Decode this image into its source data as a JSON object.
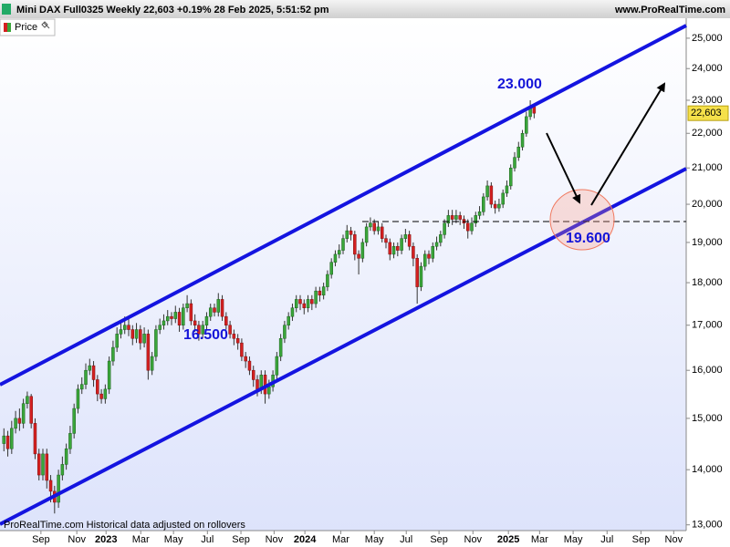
{
  "header": {
    "title": "Mini DAX Full0325 Weekly 22,603 +0.19% 28 Feb 2025, 5:51:52 pm",
    "site": "www.ProRealTime.com"
  },
  "legend": {
    "label": "Price"
  },
  "footer": "ProRealTime.com  Historical data adjusted on rollovers",
  "chart_data": {
    "type": "candlestick",
    "log_scale": true,
    "up_color": "#3aa63a",
    "down_color": "#d42020",
    "xlim": [
      -1,
      175
    ],
    "ylim": [
      12900,
      25680
    ],
    "xticks": [
      {
        "value": 9.5,
        "label": "Sep"
      },
      {
        "value": 18.7,
        "label": "Nov"
      },
      {
        "value": 26.2,
        "label": "2023"
      },
      {
        "value": 35.1,
        "label": "Mar"
      },
      {
        "value": 43.5,
        "label": "May"
      },
      {
        "value": 52.2,
        "label": "Jul"
      },
      {
        "value": 60.8,
        "label": "Sep"
      },
      {
        "value": 69.3,
        "label": "Nov"
      },
      {
        "value": 77.2,
        "label": "2024"
      },
      {
        "value": 86.4,
        "label": "Mar"
      },
      {
        "value": 95,
        "label": "May"
      },
      {
        "value": 103.2,
        "label": "Jul"
      },
      {
        "value": 111.6,
        "label": "Sep"
      },
      {
        "value": 120.3,
        "label": "Nov"
      },
      {
        "value": 129.4,
        "label": "2025"
      },
      {
        "value": 137.4,
        "label": "Mar"
      },
      {
        "value": 146,
        "label": "May"
      },
      {
        "value": 154.7,
        "label": "Jul"
      },
      {
        "value": 163.4,
        "label": "Sep"
      },
      {
        "value": 171.8,
        "label": "Nov"
      }
    ],
    "yticks": [
      {
        "value": 13000,
        "label": "13,000"
      },
      {
        "value": 14000,
        "label": "14,000"
      },
      {
        "value": 15000,
        "label": "15,000"
      },
      {
        "value": 16000,
        "label": "16,000"
      },
      {
        "value": 17000,
        "label": "17,000"
      },
      {
        "value": 18000,
        "label": "18,000"
      },
      {
        "value": 19000,
        "label": "19,000"
      },
      {
        "value": 20000,
        "label": "20,000"
      },
      {
        "value": 21000,
        "label": "21,000"
      },
      {
        "value": 22000,
        "label": "22,000"
      },
      {
        "value": 23000,
        "label": "23,000"
      },
      {
        "value": 24000,
        "label": "24,000"
      },
      {
        "value": 25000,
        "label": "25,000"
      }
    ],
    "last_price": {
      "value": 22603,
      "label": "22,603"
    },
    "annotations": [
      "23.000",
      "16.500",
      "19.600"
    ],
    "open": [
      14500,
      14650,
      14400,
      14800,
      15000,
      14900,
      15300,
      15450,
      14900,
      14300,
      13900,
      14300,
      13800,
      13600,
      13400,
      13900,
      14100,
      14400,
      14700,
      15200,
      15600,
      15700,
      16000,
      16100,
      15800,
      15500,
      15400,
      15600,
      16200,
      16500,
      16800,
      16900,
      17000,
      16900,
      16700,
      16900,
      16600,
      16800,
      16000,
      16300,
      16900,
      17000,
      17100,
      17200,
      17150,
      17300,
      17000,
      17400,
      17500,
      17100,
      17000,
      16800,
      17000,
      17200,
      17400,
      17300,
      17600,
      17200,
      17000,
      16800,
      16700,
      16600,
      16300,
      16200,
      16000,
      15800,
      15600,
      15900,
      15500,
      15650,
      15900,
      16300,
      16700,
      17000,
      17200,
      17400,
      17600,
      17500,
      17400,
      17600,
      17500,
      17800,
      17700,
      17900,
      18200,
      18500,
      18700,
      18800,
      19100,
      19300,
      19200,
      18700,
      18600,
      19000,
      19400,
      19500,
      19300,
      19400,
      19100,
      19000,
      18700,
      18900,
      18800,
      19100,
      19200,
      18900,
      18600,
      17900,
      18400,
      18700,
      18600,
      18900,
      19000,
      19200,
      19500,
      19700,
      19600,
      19700,
      19600,
      19500,
      19300,
      19500,
      19700,
      19800,
      20200,
      20500,
      20000,
      19900,
      20000,
      20300,
      20500,
      21000,
      21300,
      21600,
      22000,
      22500,
      22800
    ],
    "high": [
      14800,
      14750,
      14950,
      15150,
      15200,
      15400,
      15550,
      15500,
      15000,
      14400,
      14400,
      14400,
      13900,
      13700,
      14000,
      14250,
      14500,
      14850,
      15300,
      15700,
      15850,
      16150,
      16250,
      16200,
      15900,
      15600,
      15700,
      16300,
      16650,
      16950,
      17100,
      17200,
      17150,
      17000,
      17050,
      17000,
      16950,
      16900,
      16400,
      17000,
      17150,
      17250,
      17350,
      17300,
      17450,
      17400,
      17500,
      17700,
      17600,
      17250,
      17100,
      17100,
      17300,
      17500,
      17500,
      17750,
      17700,
      17300,
      17100,
      16900,
      16800,
      16700,
      16400,
      16300,
      16100,
      15900,
      16000,
      16000,
      15800,
      16000,
      16400,
      16800,
      17100,
      17300,
      17500,
      17700,
      17700,
      17600,
      17700,
      17700,
      17900,
      17900,
      18000,
      18300,
      18600,
      18800,
      18950,
      19200,
      19450,
      19400,
      19300,
      18800,
      19100,
      19500,
      19650,
      19600,
      19550,
      19500,
      19200,
      19100,
      19000,
      19000,
      19200,
      19350,
      19300,
      19000,
      18700,
      18500,
      18800,
      18800,
      19000,
      19150,
      19300,
      19600,
      19850,
      19850,
      19850,
      19800,
      19700,
      19600,
      19650,
      19800,
      19950,
      20300,
      20650,
      20600,
      20100,
      20150,
      20400,
      20650,
      21100,
      21450,
      21750,
      22100,
      22650,
      23000,
      22900
    ],
    "low": [
      14350,
      14250,
      14300,
      14700,
      14750,
      14800,
      15200,
      14800,
      14200,
      13800,
      13800,
      13650,
      13400,
      13200,
      13300,
      13800,
      14000,
      14300,
      14600,
      15100,
      15500,
      15600,
      15900,
      15650,
      15350,
      15300,
      15300,
      15500,
      16100,
      16400,
      16700,
      16800,
      16750,
      16550,
      16600,
      16450,
      16500,
      15800,
      15900,
      16200,
      16800,
      16900,
      17000,
      17000,
      17050,
      16850,
      16900,
      17300,
      17000,
      16850,
      16650,
      16700,
      16900,
      17100,
      17200,
      17200,
      17100,
      16900,
      16700,
      16550,
      16450,
      16200,
      16050,
      15900,
      15650,
      15450,
      15500,
      15300,
      15400,
      15550,
      15800,
      16200,
      16600,
      16900,
      17100,
      17300,
      17350,
      17250,
      17300,
      17350,
      17400,
      17550,
      17600,
      17800,
      18100,
      18400,
      18600,
      18700,
      19000,
      19050,
      18550,
      18200,
      18500,
      18900,
      19300,
      19200,
      19200,
      19000,
      18850,
      18550,
      18600,
      18650,
      18700,
      19000,
      18800,
      18400,
      17500,
      17800,
      18300,
      18450,
      18500,
      18800,
      18900,
      19100,
      19400,
      19450,
      19500,
      19450,
      19350,
      19100,
      19200,
      19400,
      19600,
      19700,
      20100,
      19900,
      19750,
      19800,
      19900,
      20200,
      20400,
      20900,
      21200,
      21500,
      21900,
      22400,
      22450
    ],
    "close": [
      14650,
      14400,
      14800,
      15000,
      14900,
      15300,
      15450,
      14900,
      14300,
      13900,
      14300,
      13800,
      13600,
      13400,
      13900,
      14100,
      14400,
      14700,
      15200,
      15600,
      15700,
      16000,
      16100,
      15800,
      15500,
      15400,
      15600,
      16200,
      16500,
      16800,
      16900,
      17000,
      16900,
      16700,
      16900,
      16600,
      16800,
      16000,
      16300,
      16900,
      17000,
      17100,
      17200,
      17150,
      17300,
      17000,
      17400,
      17500,
      17100,
      17000,
      16800,
      17000,
      17200,
      17400,
      17300,
      17600,
      17200,
      17000,
      16800,
      16700,
      16600,
      16300,
      16200,
      16000,
      15800,
      15600,
      15900,
      15500,
      15650,
      15900,
      16300,
      16700,
      17000,
      17200,
      17400,
      17600,
      17500,
      17400,
      17600,
      17500,
      17800,
      17700,
      17900,
      18200,
      18500,
      18700,
      18800,
      19100,
      19300,
      19200,
      18700,
      18600,
      19000,
      19400,
      19500,
      19300,
      19400,
      19100,
      19000,
      18700,
      18900,
      18800,
      19100,
      19200,
      18900,
      18600,
      17900,
      18400,
      18700,
      18600,
      18900,
      19000,
      19200,
      19500,
      19700,
      19600,
      19700,
      19600,
      19500,
      19300,
      19500,
      19700,
      19800,
      20200,
      20500,
      20000,
      19900,
      20000,
      20300,
      20500,
      21000,
      21300,
      21600,
      22000,
      22500,
      22800,
      22603
    ]
  }
}
